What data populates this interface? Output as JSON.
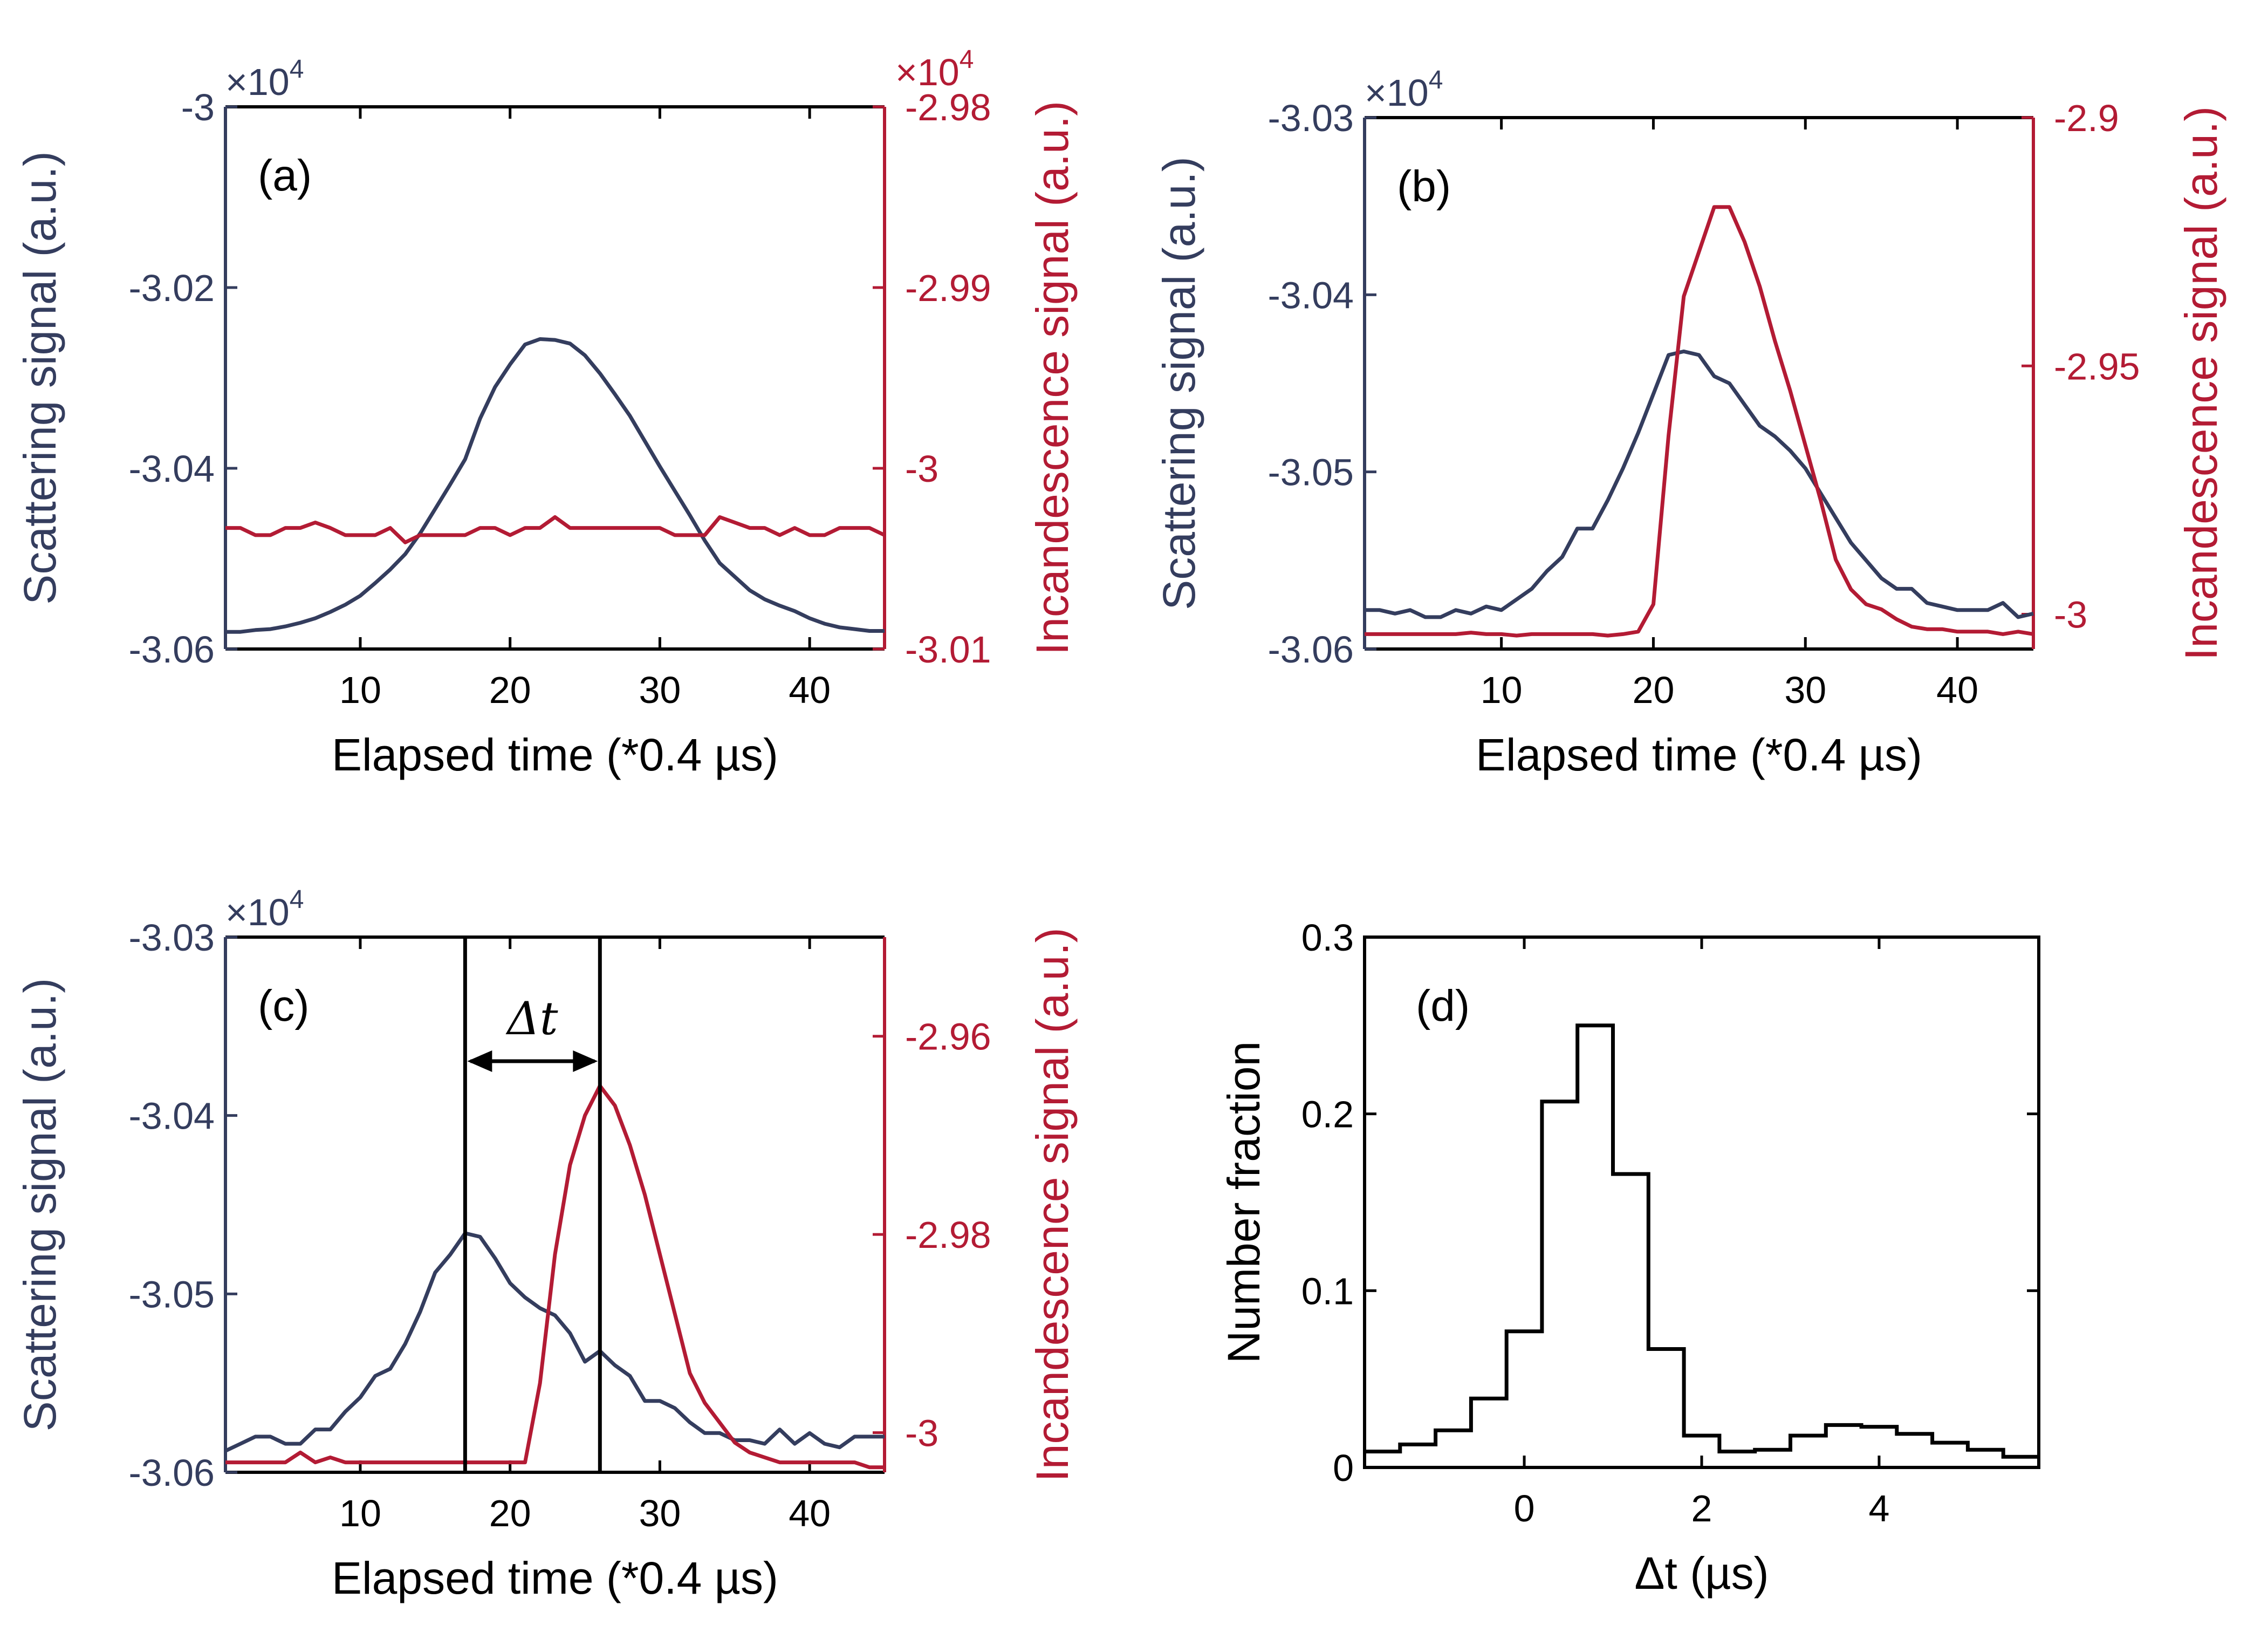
{
  "colors": {
    "scatter": "#343d5e",
    "incand": "#b31b34",
    "black": "#000000"
  },
  "chart_data": [
    {
      "type": "line",
      "panel": "(a)",
      "xlabel": "Elapsed time (*0.4 µs)",
      "ylabel_left": "Scattering signal (a.u.)",
      "ylabel_right": "Incandescence signal (a.u.)",
      "multiplier_left": "×10",
      "multiplier_left_exp": "4",
      "multiplier_right": "×10",
      "multiplier_right_exp": "4",
      "xlim": [
        1,
        45
      ],
      "ylim_left": [
        -3.06,
        -3.0
      ],
      "ylim_right": [
        -3.01,
        -2.98
      ],
      "xticks": [
        10,
        20,
        30,
        40
      ],
      "xtick_labels": [
        "10",
        "20",
        "30",
        "40"
      ],
      "yticks_left": [
        -3.06,
        -3.04,
        -3.02,
        -3.0
      ],
      "ytick_labels_left": [
        "-3.06",
        "-3.04",
        "-3.02",
        "-3"
      ],
      "yticks_right": [
        -3.01,
        -3.0,
        -2.99,
        -2.98
      ],
      "ytick_labels_right": [
        "-3.01",
        "-3",
        "-2.99",
        "-2.98"
      ],
      "series": [
        {
          "name": "Scattering",
          "axis": "left",
          "color_key": "scatter",
          "x": [
            1,
            2,
            3,
            4,
            5,
            6,
            7,
            8,
            9,
            10,
            11,
            12,
            13,
            14,
            15,
            16,
            17,
            18,
            19,
            20,
            21,
            22,
            23,
            24,
            25,
            26,
            27,
            28,
            29,
            30,
            31,
            32,
            33,
            34,
            35,
            36,
            37,
            38,
            39,
            40,
            41,
            42,
            43,
            44,
            45
          ],
          "y": [
            -3.0581,
            -3.0581,
            -3.0579,
            -3.0578,
            -3.0575,
            -3.0571,
            -3.0566,
            -3.0559,
            -3.0551,
            -3.0541,
            -3.0527,
            -3.0512,
            -3.0495,
            -3.0472,
            -3.0445,
            -3.0418,
            -3.039,
            -3.0345,
            -3.031,
            -3.0285,
            -3.0263,
            -3.0257,
            -3.0258,
            -3.0262,
            -3.0275,
            -3.0295,
            -3.0318,
            -3.0342,
            -3.037,
            -3.0398,
            -3.0425,
            -3.0452,
            -3.048,
            -3.0505,
            -3.052,
            -3.0535,
            -3.0545,
            -3.0552,
            -3.0558,
            -3.0566,
            -3.0572,
            -3.0576,
            -3.0578,
            -3.058,
            -3.058
          ]
        },
        {
          "name": "Incandescence",
          "axis": "right",
          "color_key": "incand",
          "x": [
            1,
            2,
            3,
            4,
            5,
            6,
            7,
            8,
            9,
            10,
            11,
            12,
            13,
            14,
            15,
            16,
            17,
            18,
            19,
            20,
            21,
            22,
            23,
            24,
            25,
            26,
            27,
            28,
            29,
            30,
            31,
            32,
            33,
            34,
            35,
            36,
            37,
            38,
            39,
            40,
            41,
            42,
            43,
            44,
            45
          ],
          "y": [
            -3.0033,
            -3.0033,
            -3.0037,
            -3.0037,
            -3.0033,
            -3.0033,
            -3.003,
            -3.0033,
            -3.0037,
            -3.0037,
            -3.0037,
            -3.0033,
            -3.0041,
            -3.0037,
            -3.0037,
            -3.0037,
            -3.0037,
            -3.0033,
            -3.0033,
            -3.0037,
            -3.0033,
            -3.0033,
            -3.0027,
            -3.0033,
            -3.0033,
            -3.0033,
            -3.0033,
            -3.0033,
            -3.0033,
            -3.0033,
            -3.0037,
            -3.0037,
            -3.0037,
            -3.0027,
            -3.003,
            -3.0033,
            -3.0033,
            -3.0037,
            -3.0033,
            -3.0037,
            -3.0037,
            -3.0033,
            -3.0033,
            -3.0033,
            -3.0037
          ]
        }
      ]
    },
    {
      "type": "line",
      "panel": "(b)",
      "xlabel": "Elapsed time (*0.4 µs)",
      "ylabel_left": "Scattering signal (a.u.)",
      "ylabel_right": "Incandescence signal (a.u.)",
      "multiplier_left": "×10",
      "multiplier_left_exp": "4",
      "xlim": [
        1,
        45
      ],
      "ylim_left": [
        -3.06,
        -3.03
      ],
      "ylim_right": [
        -3.007,
        -2.9
      ],
      "xticks": [
        10,
        20,
        30,
        40
      ],
      "xtick_labels": [
        "10",
        "20",
        "30",
        "40"
      ],
      "yticks_left": [
        -3.06,
        -3.05,
        -3.04,
        -3.03
      ],
      "ytick_labels_left": [
        "-3.06",
        "-3.05",
        "-3.04",
        "-3.03"
      ],
      "yticks_right": [
        -3.0,
        -2.95,
        -2.9
      ],
      "ytick_labels_right": [
        "-3",
        "-2.95",
        "-2.9"
      ],
      "series": [
        {
          "name": "Scattering",
          "axis": "left",
          "color_key": "scatter",
          "x": [
            1,
            2,
            3,
            4,
            5,
            6,
            7,
            8,
            9,
            10,
            11,
            12,
            13,
            14,
            15,
            16,
            17,
            18,
            19,
            20,
            21,
            22,
            23,
            24,
            25,
            26,
            27,
            28,
            29,
            30,
            31,
            32,
            33,
            34,
            35,
            36,
            37,
            38,
            39,
            40,
            41,
            42,
            43,
            44,
            45
          ],
          "y": [
            -3.0578,
            -3.0578,
            -3.058,
            -3.0578,
            -3.0582,
            -3.0582,
            -3.0578,
            -3.058,
            -3.0576,
            -3.0578,
            -3.0572,
            -3.0566,
            -3.0556,
            -3.0548,
            -3.0532,
            -3.0532,
            -3.0516,
            -3.0498,
            -3.0478,
            -3.0456,
            -3.0434,
            -3.0432,
            -3.0434,
            -3.0446,
            -3.045,
            -3.0462,
            -3.0474,
            -3.048,
            -3.0488,
            -3.0498,
            -3.0512,
            -3.0526,
            -3.054,
            -3.055,
            -3.056,
            -3.0566,
            -3.0566,
            -3.0574,
            -3.0576,
            -3.0578,
            -3.0578,
            -3.0578,
            -3.0574,
            -3.0582,
            -3.058
          ]
        },
        {
          "name": "Incandescence",
          "axis": "right",
          "color_key": "incand",
          "x": [
            1,
            2,
            3,
            4,
            5,
            6,
            7,
            8,
            9,
            10,
            11,
            12,
            13,
            14,
            15,
            16,
            17,
            18,
            19,
            20,
            21,
            22,
            23,
            24,
            25,
            26,
            27,
            28,
            29,
            30,
            31,
            32,
            33,
            34,
            35,
            36,
            37,
            38,
            39,
            40,
            41,
            42,
            43,
            44,
            45
          ],
          "y": [
            -3.004,
            -3.004,
            -3.004,
            -3.004,
            -3.004,
            -3.004,
            -3.004,
            -3.0037,
            -3.004,
            -3.004,
            -3.0043,
            -3.004,
            -3.004,
            -3.004,
            -3.004,
            -3.004,
            -3.0043,
            -3.004,
            -3.0035,
            -2.998,
            -2.964,
            -2.936,
            -2.927,
            -2.918,
            -2.918,
            -2.925,
            -2.934,
            -2.945,
            -2.955,
            -2.966,
            -2.977,
            -2.989,
            -2.995,
            -2.998,
            -2.999,
            -3.001,
            -3.0025,
            -3.003,
            -3.003,
            -3.0035,
            -3.0035,
            -3.0035,
            -3.004,
            -3.0035,
            -3.004
          ]
        }
      ]
    },
    {
      "type": "line",
      "panel": "(c)",
      "xlabel": "Elapsed time (*0.4 µs)",
      "ylabel_left": "Scattering signal (a.u.)",
      "ylabel_right": "Incandescence signal (a.u.)",
      "multiplier_left": "×10",
      "multiplier_left_exp": "4",
      "annotation": "Δt",
      "vlines": [
        17,
        26
      ],
      "xlim": [
        1,
        45
      ],
      "ylim_left": [
        -3.06,
        -3.03
      ],
      "ylim_right": [
        -3.004,
        -2.95
      ],
      "xticks": [
        10,
        20,
        30,
        40
      ],
      "xtick_labels": [
        "10",
        "20",
        "30",
        "40"
      ],
      "yticks_left": [
        -3.06,
        -3.05,
        -3.04,
        -3.03
      ],
      "ytick_labels_left": [
        "-3.06",
        "-3.05",
        "-3.04",
        "-3.03"
      ],
      "yticks_right": [
        -3.0,
        -2.98,
        -2.96
      ],
      "ytick_labels_right": [
        "-3",
        "-2.98",
        "-2.96"
      ],
      "series": [
        {
          "name": "Scattering",
          "axis": "left",
          "color_key": "scatter",
          "x": [
            1,
            2,
            3,
            4,
            5,
            6,
            7,
            8,
            9,
            10,
            11,
            12,
            13,
            14,
            15,
            16,
            17,
            18,
            19,
            20,
            21,
            22,
            23,
            24,
            25,
            26,
            27,
            28,
            29,
            30,
            31,
            32,
            33,
            34,
            35,
            36,
            37,
            38,
            39,
            40,
            41,
            42,
            43,
            44,
            45
          ],
          "y": [
            -3.0588,
            -3.0584,
            -3.058,
            -3.058,
            -3.0584,
            -3.0584,
            -3.0576,
            -3.0576,
            -3.0566,
            -3.0558,
            -3.0546,
            -3.0542,
            -3.0528,
            -3.051,
            -3.0488,
            -3.0478,
            -3.0466,
            -3.0468,
            -3.048,
            -3.0494,
            -3.0502,
            -3.0508,
            -3.0512,
            -3.0522,
            -3.0538,
            -3.0532,
            -3.054,
            -3.0546,
            -3.056,
            -3.056,
            -3.0564,
            -3.0572,
            -3.0578,
            -3.0578,
            -3.0582,
            -3.0582,
            -3.0584,
            -3.0576,
            -3.0584,
            -3.0578,
            -3.0584,
            -3.0586,
            -3.058,
            -3.058,
            -3.058
          ]
        },
        {
          "name": "Incandescence",
          "axis": "right",
          "color_key": "incand",
          "x": [
            1,
            2,
            3,
            4,
            5,
            6,
            7,
            8,
            9,
            10,
            11,
            12,
            13,
            14,
            15,
            16,
            17,
            18,
            19,
            20,
            21,
            22,
            23,
            24,
            25,
            26,
            27,
            28,
            29,
            30,
            31,
            32,
            33,
            34,
            35,
            36,
            37,
            38,
            39,
            40,
            41,
            42,
            43,
            44,
            45
          ],
          "y": [
            -3.003,
            -3.003,
            -3.003,
            -3.003,
            -3.003,
            -3.002,
            -3.003,
            -3.0025,
            -3.003,
            -3.003,
            -3.003,
            -3.003,
            -3.003,
            -3.003,
            -3.003,
            -3.003,
            -3.003,
            -3.003,
            -3.003,
            -3.003,
            -3.003,
            -2.995,
            -2.982,
            -2.973,
            -2.968,
            -2.965,
            -2.967,
            -2.971,
            -2.976,
            -2.982,
            -2.988,
            -2.994,
            -2.997,
            -2.999,
            -3.001,
            -3.002,
            -3.0025,
            -3.003,
            -3.003,
            -3.003,
            -3.003,
            -3.003,
            -3.003,
            -3.0035,
            -3.0035
          ]
        }
      ]
    },
    {
      "type": "bar",
      "style": "stairs",
      "panel": "(d)",
      "xlabel": "Δt (µs)",
      "ylabel": "Number fraction",
      "xlim": [
        -1.8,
        5.8
      ],
      "ylim": [
        0,
        0.3
      ],
      "xticks": [
        0,
        2,
        4
      ],
      "xtick_labels": [
        "0",
        "2",
        "4"
      ],
      "yticks": [
        0,
        0.1,
        0.2,
        0.3
      ],
      "ytick_labels": [
        "0",
        "0.1",
        "0.2",
        "0.3"
      ],
      "bin_edges": [
        -1.8,
        -1.4,
        -1.0,
        -0.6,
        -0.2,
        0.2,
        0.6,
        1.0,
        1.4,
        1.8,
        2.2,
        2.6,
        3.0,
        3.4,
        3.8,
        4.2,
        4.6,
        5.0,
        5.4,
        5.8
      ],
      "values": [
        0.009,
        0.013,
        0.021,
        0.039,
        0.077,
        0.207,
        0.25,
        0.166,
        0.067,
        0.018,
        0.009,
        0.01,
        0.018,
        0.024,
        0.023,
        0.019,
        0.014,
        0.01,
        0.006
      ]
    }
  ]
}
